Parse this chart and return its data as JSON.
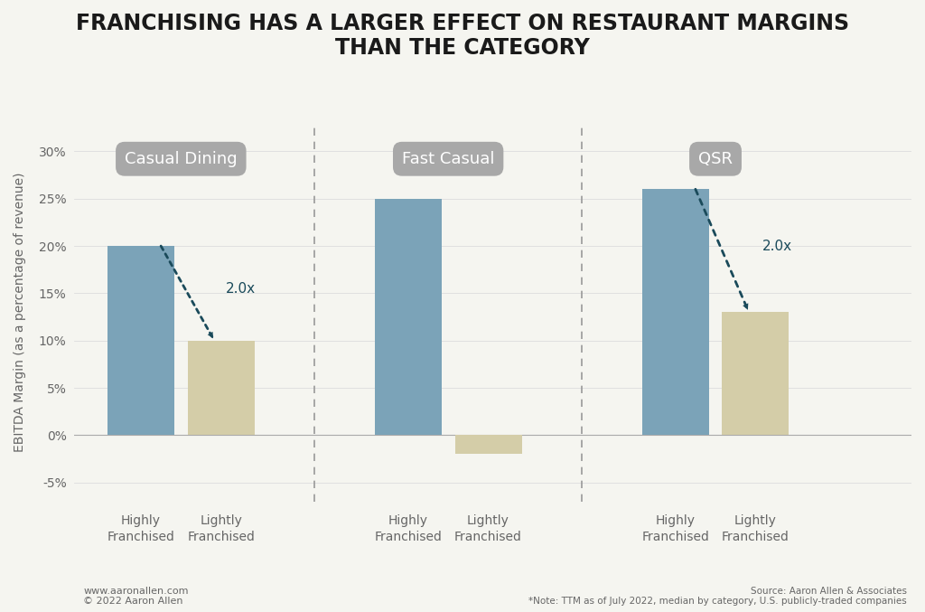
{
  "title": "FRANCHISING HAS A LARGER EFFECT ON RESTAURANT MARGINS\nTHAN THE CATEGORY",
  "ylabel": "EBITDA Margin (as a percentage of revenue)",
  "categories": [
    "Casual Dining",
    "Fast Casual",
    "QSR"
  ],
  "bar_labels": [
    "Highly\nFranchised",
    "Lightly\nFranchised"
  ],
  "values": {
    "Casual Dining": [
      20,
      10
    ],
    "Fast Casual": [
      25,
      -2
    ],
    "QSR": [
      26,
      13
    ]
  },
  "bar_color_highly": "#7ba3b8",
  "bar_color_lightly": "#d4cda8",
  "category_label_bg": "#a8a8a8",
  "category_label_text": "#ffffff",
  "ylim": [
    -7,
    33
  ],
  "yticks": [
    -5,
    0,
    5,
    10,
    15,
    20,
    25,
    30
  ],
  "background_color": "#f5f5f0",
  "divider_color": "#999999",
  "arrow_color": "#1a4a5a",
  "multiplier_label": "2.0x",
  "source_text": "Source: Aaron Allen & Associates\n*Note: TTM as of July 2022, median by category, U.S. publicly-traded companies",
  "footer_left": "www.aaronallen.com\n© 2022 Aaron Allen",
  "title_fontsize": 17,
  "axis_label_fontsize": 10,
  "tick_fontsize": 10,
  "category_label_fontsize": 13,
  "bar_label_fontsize": 10,
  "group_positions": [
    1.0,
    4.0,
    7.0
  ],
  "bar_offsets": [
    -0.45,
    0.45
  ],
  "bar_width": 0.75,
  "xlim": [
    -0.2,
    9.2
  ]
}
